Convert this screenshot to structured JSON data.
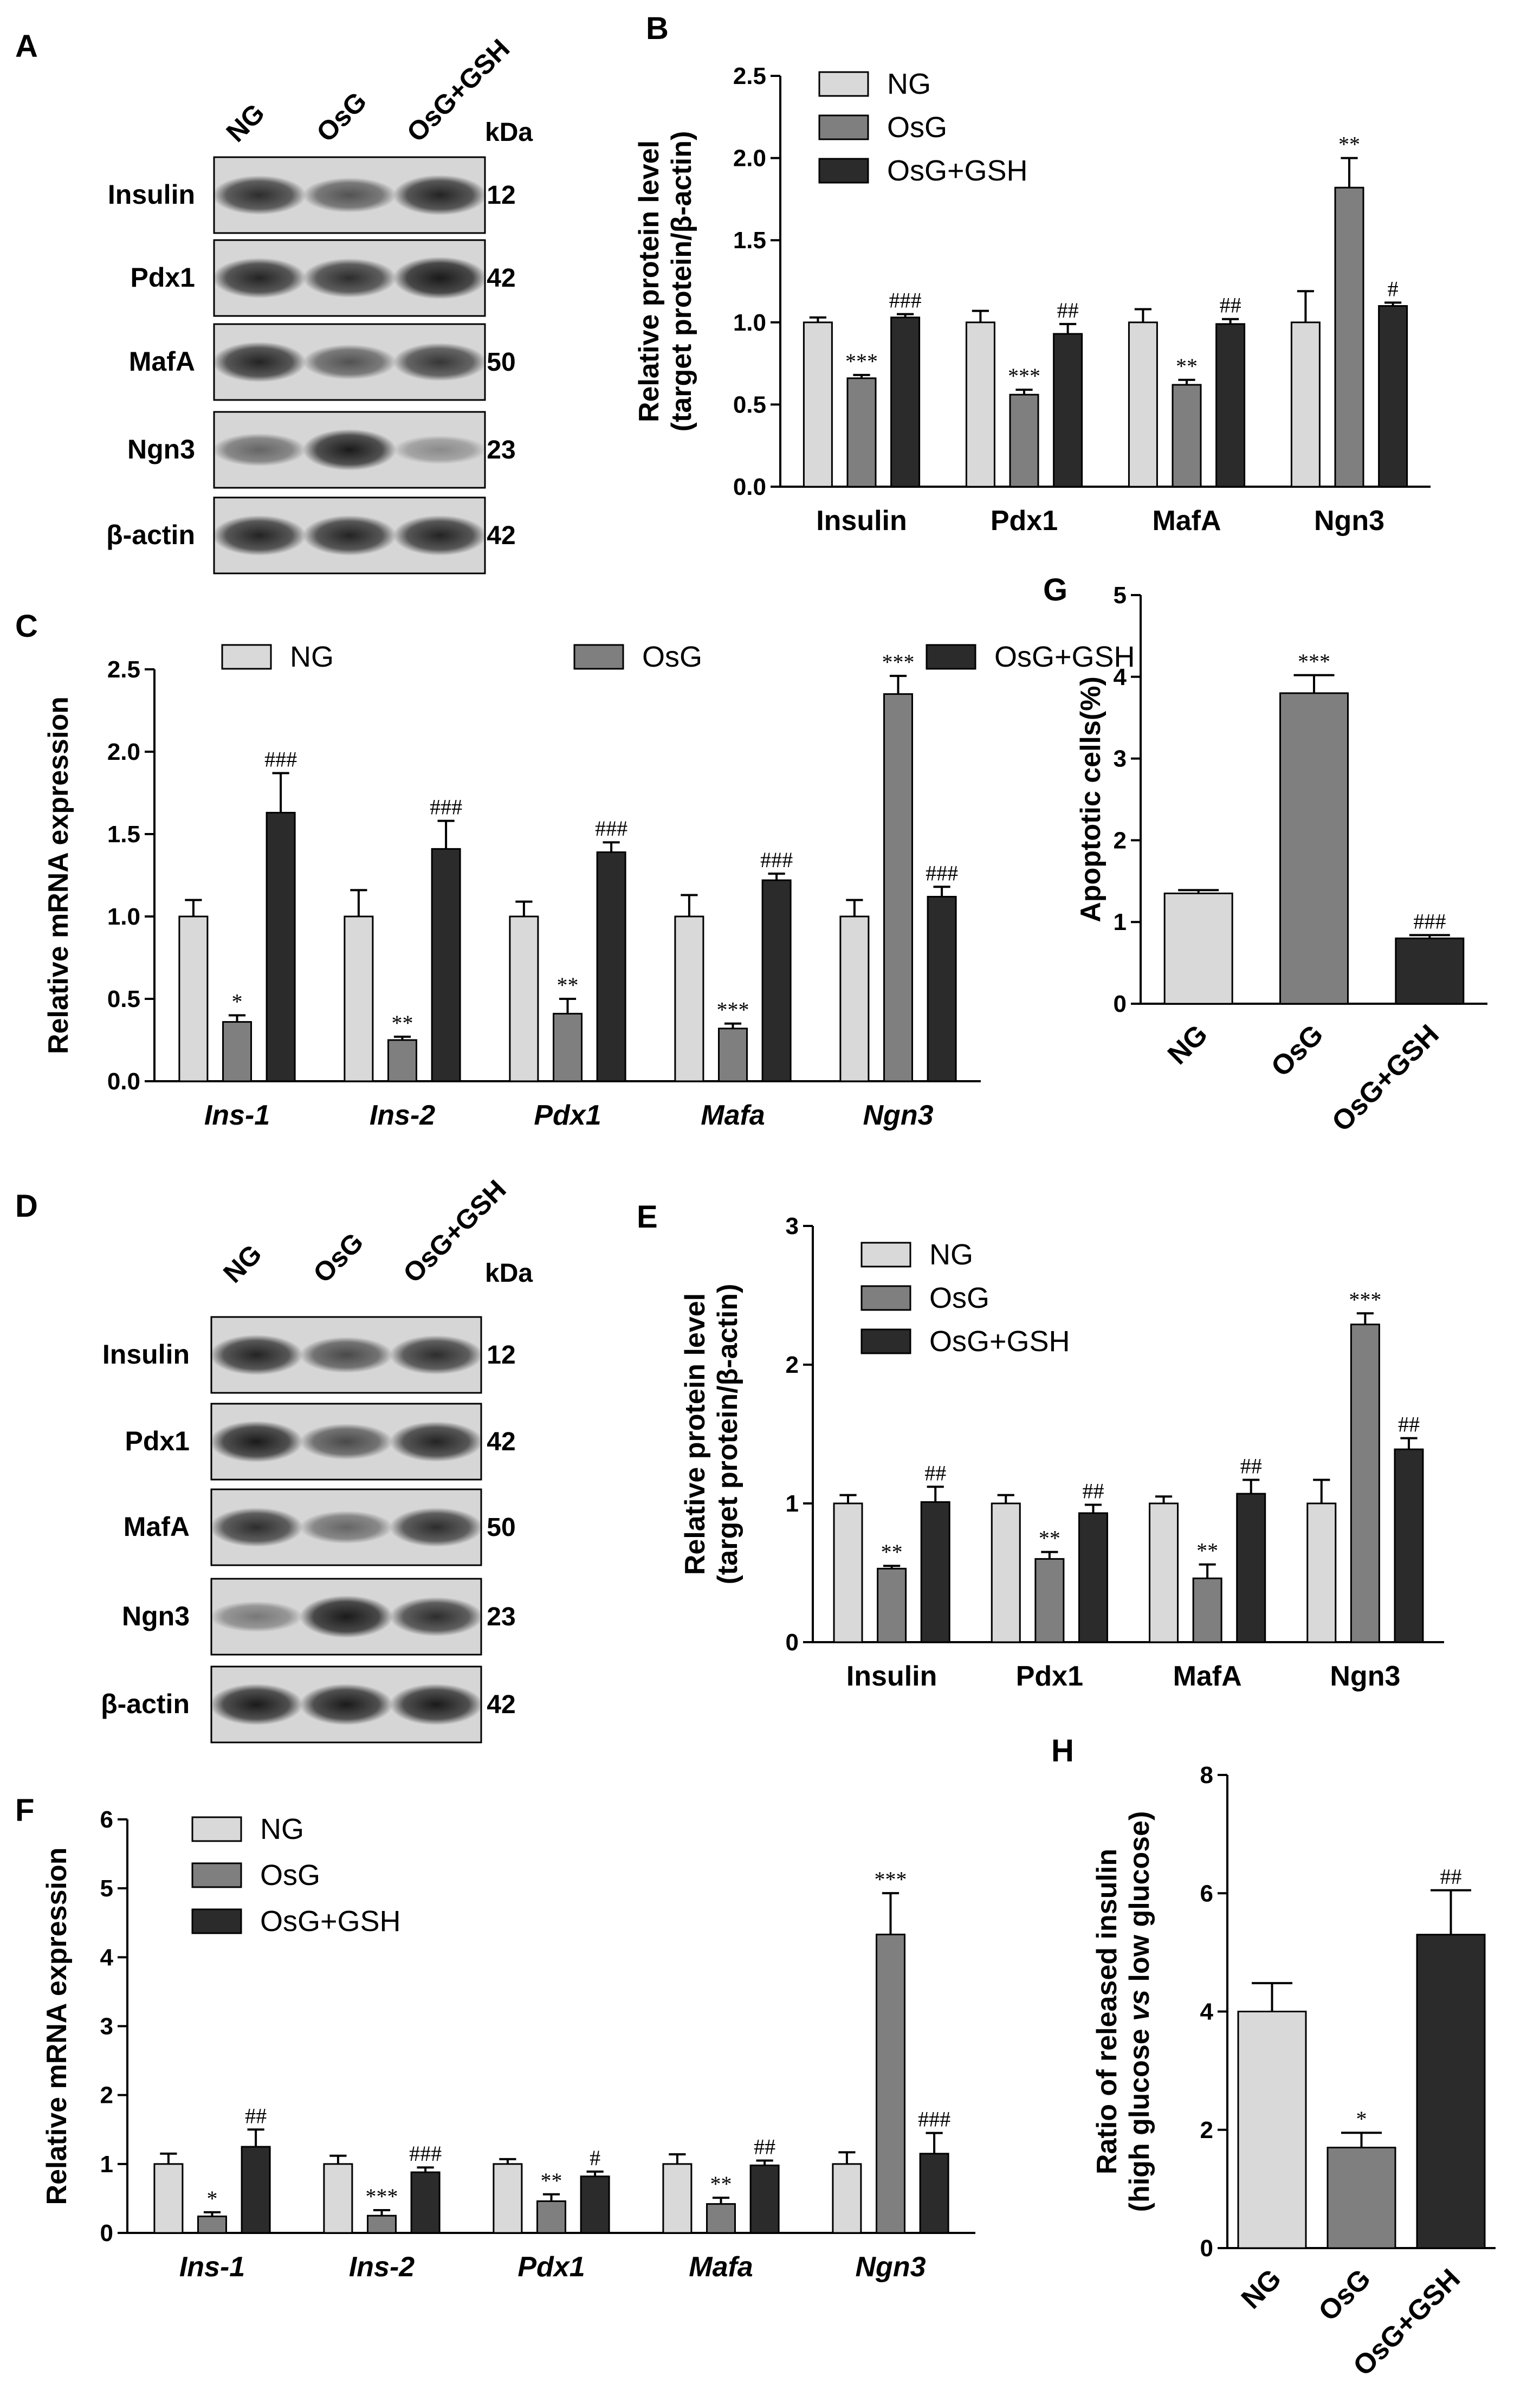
{
  "colors": {
    "NG": "#d9d9d9",
    "OsG": "#7f7f7f",
    "OsG+GSH": "#2b2b2b",
    "blot_bg": "#d6d6d6",
    "band": "#1a1a1a"
  },
  "blots": [
    {
      "panel": "A",
      "lanes": [
        "NG",
        "OsG",
        "OsG+GSH"
      ],
      "kda_label": "kDa",
      "rows": [
        {
          "label": "Insulin",
          "kda": "12",
          "intensity": [
            0.85,
            0.65,
            0.9
          ]
        },
        {
          "label": "Pdx1",
          "kda": "42",
          "intensity": [
            0.9,
            0.85,
            1.0
          ]
        },
        {
          "label": "MafA",
          "kda": "50",
          "intensity": [
            0.9,
            0.65,
            0.8
          ]
        },
        {
          "label": "Ngn3",
          "kda": "23",
          "intensity": [
            0.55,
            0.95,
            0.35
          ]
        },
        {
          "label": "β-actin",
          "kda": "42",
          "intensity": [
            0.9,
            0.9,
            0.9
          ]
        }
      ]
    },
    {
      "panel": "D",
      "lanes": [
        "NG",
        "OsG",
        "OsG+GSH"
      ],
      "kda_label": "kDa",
      "rows": [
        {
          "label": "Insulin",
          "kda": "12",
          "intensity": [
            0.9,
            0.7,
            0.85
          ]
        },
        {
          "label": "Pdx1",
          "kda": "42",
          "intensity": [
            0.95,
            0.7,
            0.9
          ]
        },
        {
          "label": "MafA",
          "kda": "50",
          "intensity": [
            0.85,
            0.55,
            0.85
          ]
        },
        {
          "label": "Ngn3",
          "kda": "23",
          "intensity": [
            0.45,
            1.0,
            0.85
          ]
        },
        {
          "label": "β-actin",
          "kda": "42",
          "intensity": [
            0.95,
            0.95,
            0.95
          ]
        }
      ]
    }
  ],
  "chart_data": [
    {
      "panel": "B",
      "type": "bar",
      "ylabel_lines": [
        "Relative protein level",
        "(target protein/β-actin)"
      ],
      "ylim": [
        0,
        2.5
      ],
      "yticks": [
        "0.0",
        "0.5",
        "1.0",
        "1.5",
        "2.0",
        "2.5"
      ],
      "categories": [
        "Insulin",
        "Pdx1",
        "MafA",
        "Ngn3"
      ],
      "italic": false,
      "legend": [
        "NG",
        "OsG",
        "OsG+GSH"
      ],
      "series": [
        {
          "name": "NG",
          "values": [
            1.0,
            1.0,
            1.0,
            1.0
          ],
          "err": [
            0.03,
            0.07,
            0.08,
            0.19
          ],
          "sig": [
            "",
            "",
            "",
            ""
          ]
        },
        {
          "name": "OsG",
          "values": [
            0.66,
            0.56,
            0.62,
            1.82
          ],
          "err": [
            0.02,
            0.03,
            0.03,
            0.18
          ],
          "sig": [
            "***",
            "***",
            "**",
            "**"
          ]
        },
        {
          "name": "OsG+GSH",
          "values": [
            1.03,
            0.93,
            0.99,
            1.1
          ],
          "err": [
            0.02,
            0.06,
            0.03,
            0.02
          ],
          "sig": [
            "###",
            "##",
            "##",
            "#"
          ]
        }
      ]
    },
    {
      "panel": "C",
      "type": "bar",
      "ylabel_lines": [
        "Relative mRNA expression"
      ],
      "ylim": [
        0,
        2.5
      ],
      "yticks": [
        "0.0",
        "0.5",
        "1.0",
        "1.5",
        "2.0",
        "2.5"
      ],
      "categories": [
        "Ins-1",
        "Ins-2",
        "Pdx1",
        "Mafa",
        "Ngn3"
      ],
      "italic": true,
      "legend": [
        "NG",
        "OsG",
        "OsG+GSH"
      ],
      "series": [
        {
          "name": "NG",
          "values": [
            1.0,
            1.0,
            1.0,
            1.0,
            1.0
          ],
          "err": [
            0.1,
            0.16,
            0.09,
            0.13,
            0.1
          ],
          "sig": [
            "",
            "",
            "",
            "",
            ""
          ]
        },
        {
          "name": "OsG",
          "values": [
            0.36,
            0.25,
            0.41,
            0.32,
            2.35
          ],
          "err": [
            0.04,
            0.02,
            0.09,
            0.03,
            0.11
          ],
          "sig": [
            "*",
            "**",
            "**",
            "***",
            "***"
          ]
        },
        {
          "name": "OsG+GSH",
          "values": [
            1.63,
            1.41,
            1.39,
            1.22,
            1.12
          ],
          "err": [
            0.24,
            0.17,
            0.06,
            0.04,
            0.06
          ],
          "sig": [
            "###",
            "###",
            "###",
            "###",
            "###"
          ]
        }
      ]
    },
    {
      "panel": "G",
      "type": "bar",
      "ylabel_lines": [
        "Apoptotic cells(%)"
      ],
      "ylim": [
        0,
        5
      ],
      "yticks": [
        "0",
        "1",
        "2",
        "3",
        "4",
        "5"
      ],
      "categories": [
        "NG",
        "OsG",
        "OsG+GSH"
      ],
      "rotated": true,
      "values": [
        1.35,
        3.8,
        0.8
      ],
      "err": [
        0.04,
        0.22,
        0.04
      ],
      "sig": [
        "",
        "***",
        "###"
      ]
    },
    {
      "panel": "E",
      "type": "bar",
      "ylabel_lines": [
        "Relative protein level",
        "(target protein/β-actin)"
      ],
      "ylim": [
        0,
        3
      ],
      "yticks": [
        "0",
        "1",
        "2",
        "3"
      ],
      "categories": [
        "Insulin",
        "Pdx1",
        "MafA",
        "Ngn3"
      ],
      "italic": false,
      "legend": [
        "NG",
        "OsG",
        "OsG+GSH"
      ],
      "series": [
        {
          "name": "NG",
          "values": [
            1.0,
            1.0,
            1.0,
            1.0
          ],
          "err": [
            0.06,
            0.06,
            0.05,
            0.17
          ],
          "sig": [
            "",
            "",
            "",
            ""
          ]
        },
        {
          "name": "OsG",
          "values": [
            0.53,
            0.6,
            0.46,
            2.29
          ],
          "err": [
            0.02,
            0.05,
            0.1,
            0.08
          ],
          "sig": [
            "**",
            "**",
            "**",
            "***"
          ]
        },
        {
          "name": "OsG+GSH",
          "values": [
            1.01,
            0.93,
            1.07,
            1.39
          ],
          "err": [
            0.11,
            0.06,
            0.1,
            0.08
          ],
          "sig": [
            "##",
            "##",
            "##",
            "##"
          ]
        }
      ]
    },
    {
      "panel": "F",
      "type": "bar",
      "ylabel_lines": [
        "Relative mRNA expression"
      ],
      "ylim": [
        0,
        6
      ],
      "yticks": [
        "0",
        "1",
        "2",
        "3",
        "4",
        "5",
        "6"
      ],
      "categories": [
        "Ins-1",
        "Ins-2",
        "Pdx1",
        "Mafa",
        "Ngn3"
      ],
      "italic": true,
      "legend": [
        "NG",
        "OsG",
        "OsG+GSH"
      ],
      "series": [
        {
          "name": "NG",
          "values": [
            1.0,
            1.0,
            1.0,
            1.0,
            1.0
          ],
          "err": [
            0.15,
            0.12,
            0.07,
            0.14,
            0.17
          ],
          "sig": [
            "",
            "",
            "",
            "",
            ""
          ]
        },
        {
          "name": "OsG",
          "values": [
            0.24,
            0.25,
            0.46,
            0.42,
            4.33
          ],
          "err": [
            0.06,
            0.08,
            0.1,
            0.09,
            0.6
          ],
          "sig": [
            "*",
            "***",
            "**",
            "**",
            "***"
          ]
        },
        {
          "name": "OsG+GSH",
          "values": [
            1.25,
            0.88,
            0.82,
            0.98,
            1.15
          ],
          "err": [
            0.25,
            0.07,
            0.07,
            0.07,
            0.3
          ],
          "sig": [
            "##",
            "###",
            "#",
            "##",
            "###"
          ]
        }
      ]
    },
    {
      "panel": "H",
      "type": "bar",
      "ylabel_lines": [
        "Ratio of released insulin",
        "(high glucose vs low glucose)"
      ],
      "ylim": [
        0,
        8
      ],
      "yticks": [
        "0",
        "2",
        "4",
        "6",
        "8"
      ],
      "categories": [
        "NG",
        "OsG",
        "OsG+GSH"
      ],
      "rotated": true,
      "values": [
        4.0,
        1.7,
        5.3
      ],
      "err": [
        0.48,
        0.25,
        0.75
      ],
      "sig": [
        "",
        "*",
        "##"
      ]
    }
  ]
}
